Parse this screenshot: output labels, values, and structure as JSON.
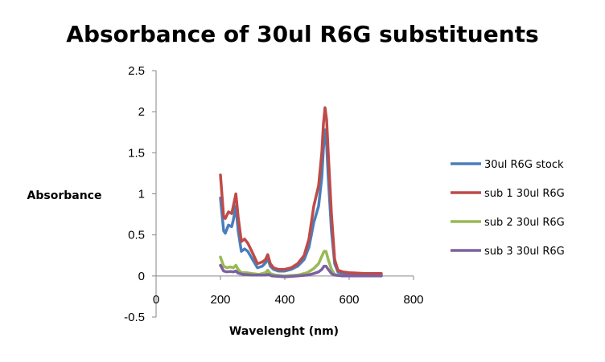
{
  "chart_data": {
    "type": "line",
    "title": "Absorbance  of 30ul R6G substituents",
    "xlabel": "Wavelenght (nm)",
    "ylabel": "Absorbance",
    "xlim": [
      0,
      800
    ],
    "ylim": [
      -0.5,
      2.5
    ],
    "xticks": [
      "0",
      "200",
      "400",
      "600",
      "800"
    ],
    "yticks": [
      "2.5",
      "2",
      "1.5",
      "1",
      "0.5",
      "0",
      "-0.5"
    ],
    "grid": false,
    "legend_position": "right",
    "series": [
      {
        "name": "30ul R6G stock",
        "color": "#4a7ebb",
        "points": [
          [
            200,
            0.95
          ],
          [
            210,
            0.55
          ],
          [
            215,
            0.52
          ],
          [
            225,
            0.62
          ],
          [
            235,
            0.6
          ],
          [
            240,
            0.68
          ],
          [
            248,
            0.85
          ],
          [
            255,
            0.55
          ],
          [
            265,
            0.3
          ],
          [
            275,
            0.33
          ],
          [
            285,
            0.3
          ],
          [
            300,
            0.2
          ],
          [
            315,
            0.1
          ],
          [
            330,
            0.12
          ],
          [
            340,
            0.16
          ],
          [
            347,
            0.21
          ],
          [
            355,
            0.12
          ],
          [
            365,
            0.08
          ],
          [
            380,
            0.06
          ],
          [
            400,
            0.06
          ],
          [
            420,
            0.08
          ],
          [
            440,
            0.12
          ],
          [
            460,
            0.2
          ],
          [
            475,
            0.35
          ],
          [
            490,
            0.65
          ],
          [
            505,
            0.85
          ],
          [
            515,
            1.2
          ],
          [
            520,
            1.55
          ],
          [
            525,
            1.78
          ],
          [
            530,
            1.6
          ],
          [
            535,
            1.2
          ],
          [
            545,
            0.55
          ],
          [
            555,
            0.15
          ],
          [
            565,
            0.05
          ],
          [
            580,
            0.03
          ],
          [
            600,
            0.02
          ],
          [
            650,
            0.01
          ],
          [
            700,
            0.01
          ]
        ]
      },
      {
        "name": "sub 1 30ul R6G",
        "color": "#be4b48",
        "points": [
          [
            200,
            1.23
          ],
          [
            210,
            0.72
          ],
          [
            215,
            0.7
          ],
          [
            225,
            0.78
          ],
          [
            235,
            0.76
          ],
          [
            240,
            0.85
          ],
          [
            248,
            1.0
          ],
          [
            255,
            0.72
          ],
          [
            265,
            0.42
          ],
          [
            275,
            0.45
          ],
          [
            285,
            0.4
          ],
          [
            300,
            0.28
          ],
          [
            315,
            0.15
          ],
          [
            330,
            0.17
          ],
          [
            340,
            0.2
          ],
          [
            347,
            0.26
          ],
          [
            355,
            0.15
          ],
          [
            365,
            0.1
          ],
          [
            380,
            0.08
          ],
          [
            400,
            0.08
          ],
          [
            420,
            0.1
          ],
          [
            440,
            0.15
          ],
          [
            460,
            0.25
          ],
          [
            475,
            0.45
          ],
          [
            490,
            0.85
          ],
          [
            505,
            1.1
          ],
          [
            515,
            1.5
          ],
          [
            520,
            1.85
          ],
          [
            525,
            2.05
          ],
          [
            530,
            1.9
          ],
          [
            535,
            1.5
          ],
          [
            545,
            0.75
          ],
          [
            555,
            0.2
          ],
          [
            565,
            0.07
          ],
          [
            580,
            0.05
          ],
          [
            600,
            0.04
          ],
          [
            650,
            0.03
          ],
          [
            700,
            0.03
          ]
        ]
      },
      {
        "name": "sub 2 30ul R6G",
        "color": "#98b954",
        "points": [
          [
            200,
            0.23
          ],
          [
            210,
            0.12
          ],
          [
            220,
            0.1
          ],
          [
            230,
            0.11
          ],
          [
            240,
            0.1
          ],
          [
            248,
            0.13
          ],
          [
            255,
            0.08
          ],
          [
            265,
            0.04
          ],
          [
            280,
            0.04
          ],
          [
            300,
            0.03
          ],
          [
            320,
            0.02
          ],
          [
            340,
            0.04
          ],
          [
            347,
            0.07
          ],
          [
            355,
            0.03
          ],
          [
            370,
            0.01
          ],
          [
            400,
            0.0
          ],
          [
            440,
            0.01
          ],
          [
            470,
            0.04
          ],
          [
            490,
            0.09
          ],
          [
            505,
            0.15
          ],
          [
            515,
            0.24
          ],
          [
            522,
            0.3
          ],
          [
            528,
            0.3
          ],
          [
            535,
            0.2
          ],
          [
            545,
            0.08
          ],
          [
            555,
            0.02
          ],
          [
            580,
            0.0
          ],
          [
            700,
            0.0
          ]
        ]
      },
      {
        "name": "sub 3 30ul R6G",
        "color": "#7d60a0",
        "points": [
          [
            200,
            0.13
          ],
          [
            210,
            0.06
          ],
          [
            220,
            0.05
          ],
          [
            230,
            0.055
          ],
          [
            240,
            0.05
          ],
          [
            248,
            0.06
          ],
          [
            255,
            0.035
          ],
          [
            270,
            0.02
          ],
          [
            300,
            0.01
          ],
          [
            340,
            0.01
          ],
          [
            347,
            0.02
          ],
          [
            360,
            0.0
          ],
          [
            400,
            -0.01
          ],
          [
            440,
            0.0
          ],
          [
            470,
            0.01
          ],
          [
            490,
            0.03
          ],
          [
            505,
            0.05
          ],
          [
            515,
            0.08
          ],
          [
            522,
            0.12
          ],
          [
            528,
            0.12
          ],
          [
            535,
            0.08
          ],
          [
            545,
            0.03
          ],
          [
            555,
            0.01
          ],
          [
            580,
            0.0
          ],
          [
            700,
            0.0
          ]
        ]
      }
    ]
  }
}
